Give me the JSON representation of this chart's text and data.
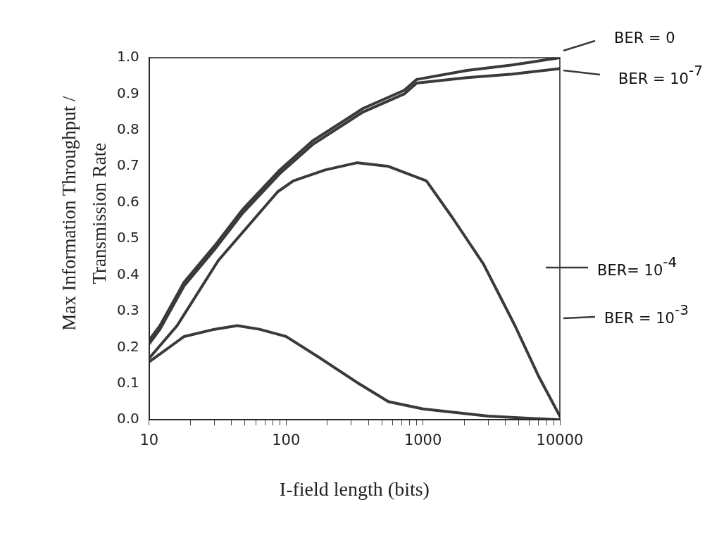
{
  "chart_data": {
    "type": "line",
    "xlabel": "I-field length (bits)",
    "ylabel": "Max  Information Throughput / Transmission  Rate",
    "log": "x",
    "xlim": [
      10,
      10000
    ],
    "ylim": [
      0,
      1
    ],
    "xticks": [
      10,
      {
        "value": 20,
        "label": null
      },
      {
        "value": 30,
        "label": null
      },
      {
        "value": 40,
        "label": null
      },
      {
        "value": 50,
        "label": null
      },
      {
        "value": 60,
        "label": null
      },
      {
        "value": 70,
        "label": null
      },
      {
        "value": 80,
        "label": null
      },
      {
        "value": 90,
        "label": null
      },
      100,
      {
        "value": 200,
        "label": null
      },
      {
        "value": 300,
        "label": null
      },
      {
        "value": 400,
        "label": null
      },
      {
        "value": 500,
        "label": null
      },
      {
        "value": 600,
        "label": null
      },
      {
        "value": 700,
        "label": null
      },
      {
        "value": 800,
        "label": null
      },
      {
        "value": 900,
        "label": null
      },
      1000,
      {
        "value": 2000,
        "label": null
      },
      {
        "value": 3000,
        "label": null
      },
      {
        "value": 4000,
        "label": null
      },
      {
        "value": 5000,
        "label": null
      },
      {
        "value": 6000,
        "label": null
      },
      {
        "value": 7000,
        "label": null
      },
      {
        "value": 8000,
        "label": null
      },
      {
        "value": 9000,
        "label": null
      },
      10000
    ],
    "yticks": [
      {
        "value": 0,
        "label": "0.0"
      },
      {
        "value": 0.1,
        "label": "0.1"
      },
      {
        "value": 0.2,
        "label": "0.2"
      },
      {
        "value": 0.3,
        "label": "0.3"
      },
      {
        "value": 0.4,
        "label": "0.4"
      },
      {
        "value": 0.5,
        "label": "0.5"
      },
      {
        "value": 0.6,
        "label": "0.6"
      },
      {
        "value": 0.7,
        "label": "0.7"
      },
      {
        "value": 0.8,
        "label": "0.8"
      },
      {
        "value": 0.9,
        "label": "0.9"
      },
      {
        "value": 1.0,
        "label": "1.0"
      }
    ],
    "grid": false,
    "legend": "right",
    "marker": "none",
    "line_style": "solid",
    "series": [
      {
        "name": "BER = 0",
        "color": "#3a3a3a",
        "x": [
          10,
          12,
          18,
          30,
          48,
          90,
          156,
          365,
          730,
          900,
          2100,
          4500,
          10000
        ],
        "values": [
          0.22,
          0.26,
          0.38,
          0.48,
          0.58,
          0.69,
          0.77,
          0.86,
          0.91,
          0.94,
          0.965,
          0.98,
          1.0
        ]
      },
      {
        "name": "BER = 10$^{-7}$",
        "color": "#3a3a3a",
        "x": [
          10,
          12,
          18,
          30,
          48,
          90,
          156,
          365,
          730,
          900,
          2100,
          4500,
          10000
        ],
        "values": [
          0.21,
          0.25,
          0.37,
          0.47,
          0.57,
          0.68,
          0.76,
          0.85,
          0.9,
          0.93,
          0.945,
          0.955,
          0.97
        ]
      },
      {
        "name": "BER= 10$^{-4}$",
        "color": "#3a3a3a",
        "x": [
          10,
          16,
          32,
          87,
          113,
          193,
          330,
          560,
          1060,
          1630,
          2770,
          4700,
          7000,
          10000
        ],
        "values": [
          0.17,
          0.26,
          0.44,
          0.63,
          0.66,
          0.69,
          0.71,
          0.7,
          0.66,
          0.56,
          0.43,
          0.26,
          0.12,
          0.01
        ]
      },
      {
        "name": "BER = 10$^{-3}$",
        "color": "#3a3a3a",
        "x": [
          10,
          18,
          30,
          44,
          64,
          100,
          178,
          340,
          560,
          1000,
          3000,
          10000
        ],
        "values": [
          0.16,
          0.23,
          0.25,
          0.26,
          0.25,
          0.23,
          0.17,
          0.1,
          0.05,
          0.03,
          0.01,
          0.0
        ]
      }
    ]
  }
}
